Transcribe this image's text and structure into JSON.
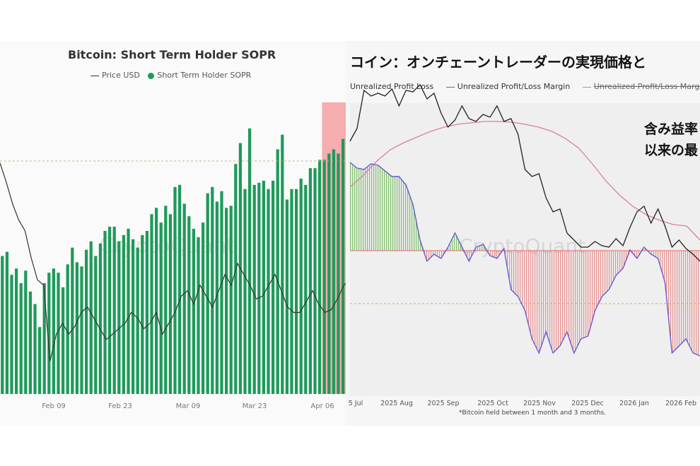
{
  "chart_data": [
    {
      "type": "bar",
      "title": "Bitcoin: Short Term Holder SOPR",
      "legend": [
        "Price USD",
        "Short Term Holder SOPR"
      ],
      "x_tick_labels": [
        "Feb 09",
        "Feb 23",
        "Mar 09",
        "Mar 23",
        "Apr 06"
      ],
      "watermark": "CryptoQuant",
      "colors": {
        "bars": "#1e9a5a",
        "price": "#333333",
        "highlight": "#f28b8b",
        "background": "#fafafa"
      },
      "sopr_bars": [
        0.66,
        0.68,
        0.57,
        0.6,
        0.53,
        0.59,
        0.49,
        0.43,
        0.32,
        0.53,
        0.58,
        0.6,
        0.58,
        0.51,
        0.62,
        0.7,
        0.63,
        0.61,
        0.69,
        0.73,
        0.66,
        0.72,
        0.78,
        0.8,
        0.8,
        0.73,
        0.76,
        0.79,
        0.74,
        0.7,
        0.76,
        0.78,
        0.86,
        0.89,
        0.82,
        0.9,
        0.86,
        0.99,
        1.0,
        0.91,
        0.85,
        0.79,
        0.75,
        0.82,
        0.96,
        0.99,
        0.92,
        0.97,
        0.89,
        0.9,
        1.1,
        1.2,
        0.98,
        1.27,
        1.0,
        1.01,
        1.02,
        0.98,
        1.02,
        1.17,
        1.24,
        0.93,
        0.98,
        0.98,
        1.03,
        1.0,
        1.08,
        1.08,
        1.12,
        1.12,
        1.15,
        1.17,
        1.15,
        1.22,
        1.26
      ],
      "price_line": [
        0.85,
        0.78,
        0.7,
        0.64,
        0.6,
        0.5,
        0.42,
        0.4,
        0.12,
        0.22,
        0.26,
        0.22,
        0.25,
        0.3,
        0.32,
        0.28,
        0.24,
        0.2,
        0.22,
        0.24,
        0.26,
        0.3,
        0.28,
        0.24,
        0.26,
        0.3,
        0.22,
        0.26,
        0.3,
        0.36,
        0.38,
        0.33,
        0.4,
        0.36,
        0.32,
        0.38,
        0.44,
        0.4,
        0.48,
        0.44,
        0.4,
        0.35,
        0.36,
        0.4,
        0.44,
        0.38,
        0.32,
        0.3,
        0.3,
        0.34,
        0.38,
        0.33,
        0.3,
        0.31,
        0.35,
        0.4,
        0.42
      ],
      "highlight_from_index": 69
    },
    {
      "type": "area",
      "title": "コイン：オンチェーントレーダーの実現価格と",
      "legend": [
        "Unrealized Profit Loss",
        "Unrealized Profit/Loss Margin",
        "Unrealized Profit/Loss Margin-EMA"
      ],
      "annotation": [
        "含み益率",
        "以来の最"
      ],
      "x_tick_labels": [
        "5 Jul",
        "2025 Aug",
        "2025 Sep",
        "2025 Oct",
        "2025 Nov",
        "2025 Dec",
        "2026 Jan",
        "2026 Feb"
      ],
      "footnote": "*Bitcoin held between 1 month and 3 months.",
      "watermark": "CryptoQuant",
      "colors": {
        "price": "#222222",
        "margin": "#6a5acd",
        "ema": "#d77fa8",
        "profit_fill": "#7fbf6a",
        "loss_fill": "#e88f8f",
        "zero_line": "#e06b6b",
        "ref_line": "#f0a14a"
      },
      "price_line": [
        200,
        182,
        128,
        136,
        132,
        136,
        126,
        150,
        128,
        130,
        120,
        140,
        132,
        160,
        180,
        170,
        150,
        168,
        172,
        162,
        166,
        150,
        172,
        168,
        190,
        240,
        250,
        246,
        280,
        300,
        296,
        330,
        340,
        350,
        350,
        342,
        348,
        350,
        338,
        348,
        322,
        300,
        292,
        316,
        296,
        320,
        350,
        340,
        352,
        360,
        370
      ],
      "margin_line": [
        230,
        238,
        240,
        232,
        234,
        242,
        250,
        250,
        262,
        290,
        340,
        370,
        360,
        366,
        350,
        330,
        350,
        370,
        350,
        346,
        362,
        366,
        352,
        410,
        420,
        440,
        480,
        500,
        470,
        500,
        490,
        470,
        500,
        480,
        476,
        440,
        420,
        410,
        390,
        380,
        354,
        366,
        350,
        360,
        366,
        400,
        500,
        490,
        480,
        500,
        504
      ],
      "ema_line": [
        265,
        248,
        228,
        212,
        202,
        194,
        186,
        180,
        176,
        174,
        172,
        172,
        173,
        176,
        180,
        186,
        196,
        210,
        232,
        256,
        276,
        292,
        304,
        312,
        318,
        320,
        340
      ],
      "zero_value": 355,
      "reference_value": 430
    }
  ]
}
